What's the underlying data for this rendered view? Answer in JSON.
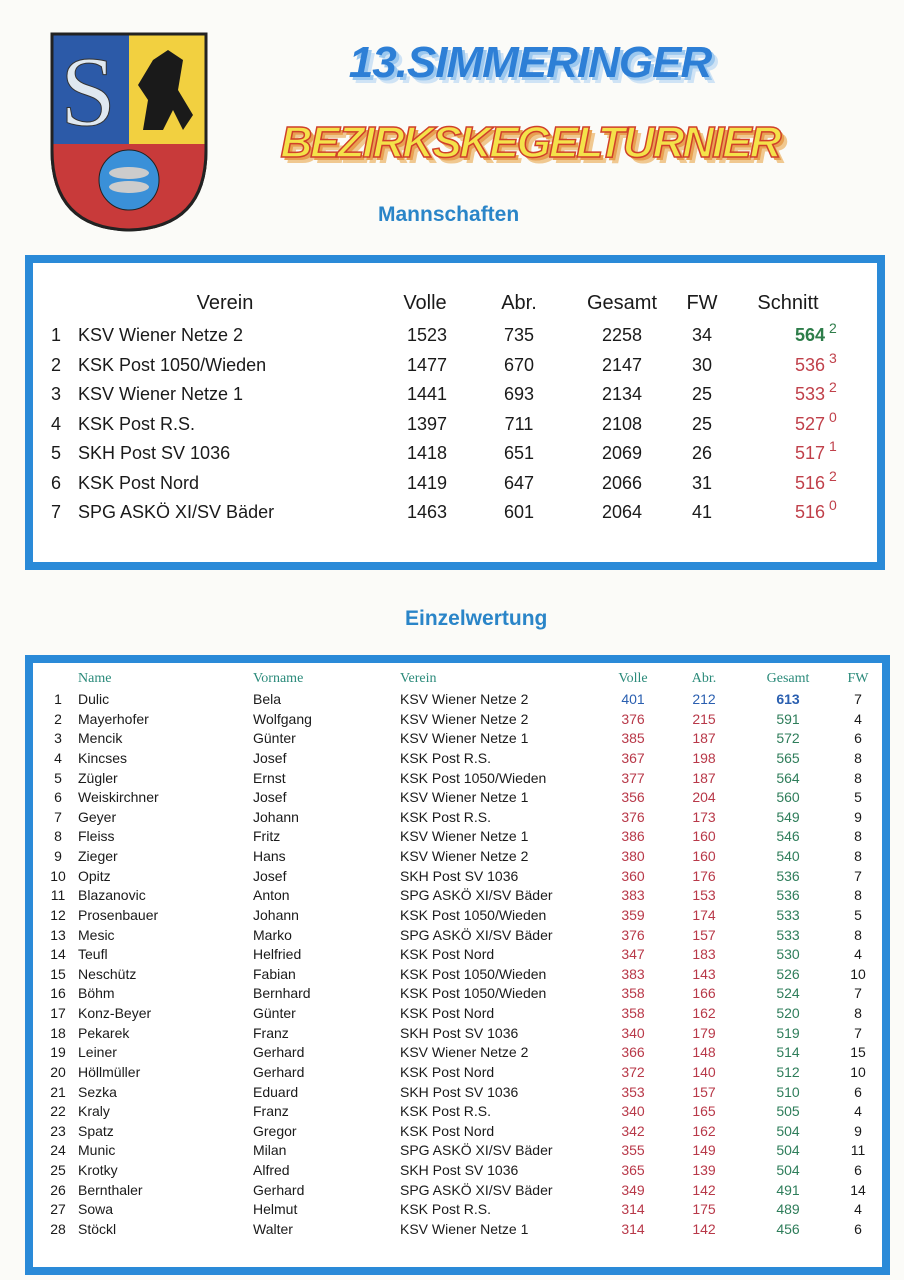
{
  "header": {
    "title_line1": "13.SIMMERINGER",
    "title_line2": "BEZIRKSKEGELTURNIER"
  },
  "teams": {
    "heading": "Mannschaften",
    "columns": [
      "Verein",
      "Volle",
      "Abr.",
      "Gesamt",
      "FW",
      "Schnitt"
    ],
    "rows": [
      [
        1,
        "KSV Wiener Netze 2",
        1523,
        735,
        2258,
        34,
        564,
        2
      ],
      [
        2,
        "KSK Post 1050/Wieden",
        1477,
        670,
        2147,
        30,
        536,
        3
      ],
      [
        3,
        "KSV Wiener Netze 1",
        1441,
        693,
        2134,
        25,
        533,
        2
      ],
      [
        4,
        "KSK Post R.S.",
        1397,
        711,
        2108,
        25,
        527,
        0
      ],
      [
        5,
        "SKH Post SV 1036",
        1418,
        651,
        2069,
        26,
        517,
        1
      ],
      [
        6,
        "KSK Post Nord",
        1419,
        647,
        2066,
        31,
        516,
        2
      ],
      [
        7,
        "SPG ASKÖ XI/SV Bäder",
        1463,
        601,
        2064,
        41,
        516,
        0
      ]
    ]
  },
  "individual": {
    "heading": "Einzelwertung",
    "columns": [
      "Name",
      "Vorname",
      "Verein",
      "Volle",
      "Abr.",
      "Gesamt",
      "FW"
    ],
    "rows": [
      [
        1,
        "Dulic",
        "Bela",
        "KSV Wiener Netze 2",
        401,
        212,
        613,
        7
      ],
      [
        2,
        "Mayerhofer",
        "Wolfgang",
        "KSV Wiener Netze 2",
        376,
        215,
        591,
        4
      ],
      [
        3,
        "Mencik",
        "Günter",
        "KSV Wiener Netze 1",
        385,
        187,
        572,
        6
      ],
      [
        4,
        "Kincses",
        "Josef",
        "KSK Post R.S.",
        367,
        198,
        565,
        8
      ],
      [
        5,
        "Zügler",
        "Ernst",
        "KSK Post 1050/Wieden",
        377,
        187,
        564,
        8
      ],
      [
        6,
        "Weiskirchner",
        "Josef",
        "KSV Wiener Netze 1",
        356,
        204,
        560,
        5
      ],
      [
        7,
        "Geyer",
        "Johann",
        "KSK Post R.S.",
        376,
        173,
        549,
        9
      ],
      [
        8,
        "Fleiss",
        "Fritz",
        "KSV Wiener Netze 1",
        386,
        160,
        546,
        8
      ],
      [
        9,
        "Zieger",
        "Hans",
        "KSV Wiener Netze 2",
        380,
        160,
        540,
        8
      ],
      [
        10,
        "Opitz",
        "Josef",
        "SKH Post SV 1036",
        360,
        176,
        536,
        7
      ],
      [
        11,
        "Blazanovic",
        "Anton",
        "SPG ASKÖ XI/SV Bäder",
        383,
        153,
        536,
        8
      ],
      [
        12,
        "Prosenbauer",
        "Johann",
        "KSK Post 1050/Wieden",
        359,
        174,
        533,
        5
      ],
      [
        13,
        "Mesic",
        "Marko",
        "SPG ASKÖ XI/SV Bäder",
        376,
        157,
        533,
        8
      ],
      [
        14,
        "Teufl",
        "Helfried",
        "KSK Post Nord",
        347,
        183,
        530,
        4
      ],
      [
        15,
        "Neschütz",
        "Fabian",
        "KSK Post 1050/Wieden",
        383,
        143,
        526,
        10
      ],
      [
        16,
        "Böhm",
        "Bernhard",
        "KSK Post 1050/Wieden",
        358,
        166,
        524,
        7
      ],
      [
        17,
        "Konz-Beyer",
        "Günter",
        "KSK Post Nord",
        358,
        162,
        520,
        8
      ],
      [
        18,
        "Pekarek",
        "Franz",
        "SKH Post SV 1036",
        340,
        179,
        519,
        7
      ],
      [
        19,
        "Leiner",
        "Gerhard",
        "KSV Wiener Netze 2",
        366,
        148,
        514,
        15
      ],
      [
        20,
        "Höllmüller",
        "Gerhard",
        "KSK Post Nord",
        372,
        140,
        512,
        10
      ],
      [
        21,
        "Sezka",
        "Eduard",
        "SKH Post SV 1036",
        353,
        157,
        510,
        6
      ],
      [
        22,
        "Kraly",
        "Franz",
        "KSK Post R.S.",
        340,
        165,
        505,
        4
      ],
      [
        23,
        "Spatz",
        "Gregor",
        "KSK Post Nord",
        342,
        162,
        504,
        9
      ],
      [
        24,
        "Munic",
        "Milan",
        "SPG ASKÖ XI/SV Bäder",
        355,
        149,
        504,
        11
      ],
      [
        25,
        "Krotky",
        "Alfred",
        "SKH Post SV 1036",
        365,
        139,
        504,
        6
      ],
      [
        26,
        "Bernthaler",
        "Gerhard",
        "SPG ASKÖ XI/SV Bäder",
        349,
        142,
        491,
        14
      ],
      [
        27,
        "Sowa",
        "Helmut",
        "KSK Post R.S.",
        314,
        175,
        489,
        4
      ],
      [
        28,
        "Stöckl",
        "Walter",
        "KSV Wiener Netze 1",
        314,
        142,
        456,
        6
      ]
    ]
  }
}
